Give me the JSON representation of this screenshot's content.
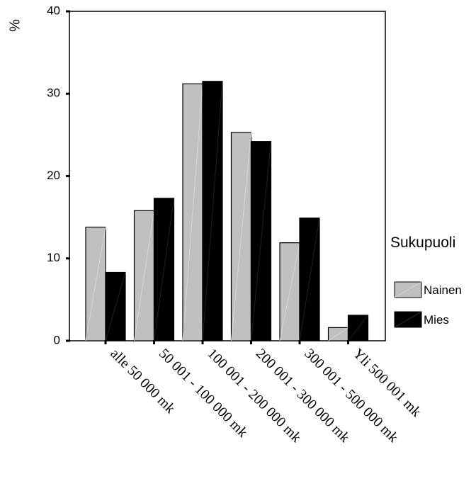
{
  "chart_data": {
    "type": "bar",
    "ylabel": "%",
    "ylim": [
      0,
      40
    ],
    "yticks": [
      0,
      10,
      20,
      30,
      40
    ],
    "categories": [
      "alle 50 000 mk",
      "50 001 - 100 000 mk",
      "100 001 - 200 000 mk",
      "200 001 - 300 000 mk",
      "300 001 - 500 000 mk",
      "Yli 500 001 mk"
    ],
    "series": [
      {
        "name": "Nainen",
        "color": "#c0c0c0",
        "values": [
          13.8,
          15.8,
          31.2,
          25.3,
          11.9,
          1.6
        ]
      },
      {
        "name": "Mies",
        "color": "#000000",
        "values": [
          8.3,
          17.3,
          31.5,
          24.2,
          14.9,
          3.1
        ]
      }
    ],
    "legend": {
      "title": "Sukupuoli",
      "placement": "right"
    },
    "grid": false
  }
}
